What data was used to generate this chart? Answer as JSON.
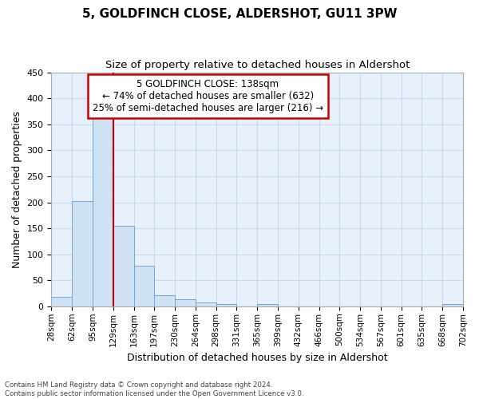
{
  "title": "5, GOLDFINCH CLOSE, ALDERSHOT, GU11 3PW",
  "subtitle": "Size of property relative to detached houses in Aldershot",
  "xlabel": "Distribution of detached houses by size in Aldershot",
  "ylabel": "Number of detached properties",
  "bar_values": [
    18,
    202,
    368,
    155,
    78,
    21,
    14,
    8,
    5,
    0,
    5,
    0,
    0,
    0,
    0,
    0,
    0,
    0,
    0,
    5
  ],
  "bin_labels": [
    "28sqm",
    "62sqm",
    "95sqm",
    "129sqm",
    "163sqm",
    "197sqm",
    "230sqm",
    "264sqm",
    "298sqm",
    "331sqm",
    "365sqm",
    "399sqm",
    "432sqm",
    "466sqm",
    "500sqm",
    "534sqm",
    "567sqm",
    "601sqm",
    "635sqm",
    "668sqm",
    "702sqm"
  ],
  "bar_color": "#cfe2f3",
  "bar_edge_color": "#6fa8dc",
  "grid_color": "#c9d9ef",
  "bg_color": "#e8f0fb",
  "annotation_box_color": "#cc0000",
  "property_line_color": "#cc0000",
  "property_bin_index": 3,
  "annotation_title": "5 GOLDFINCH CLOSE: 138sqm",
  "annotation_line1": "← 74% of detached houses are smaller (632)",
  "annotation_line2": "25% of semi-detached houses are larger (216) →",
  "ylim": [
    0,
    450
  ],
  "yticks": [
    0,
    50,
    100,
    150,
    200,
    250,
    300,
    350,
    400,
    450
  ],
  "footnote1": "Contains HM Land Registry data © Crown copyright and database right 2024.",
  "footnote2": "Contains public sector information licensed under the Open Government Licence v3.0."
}
